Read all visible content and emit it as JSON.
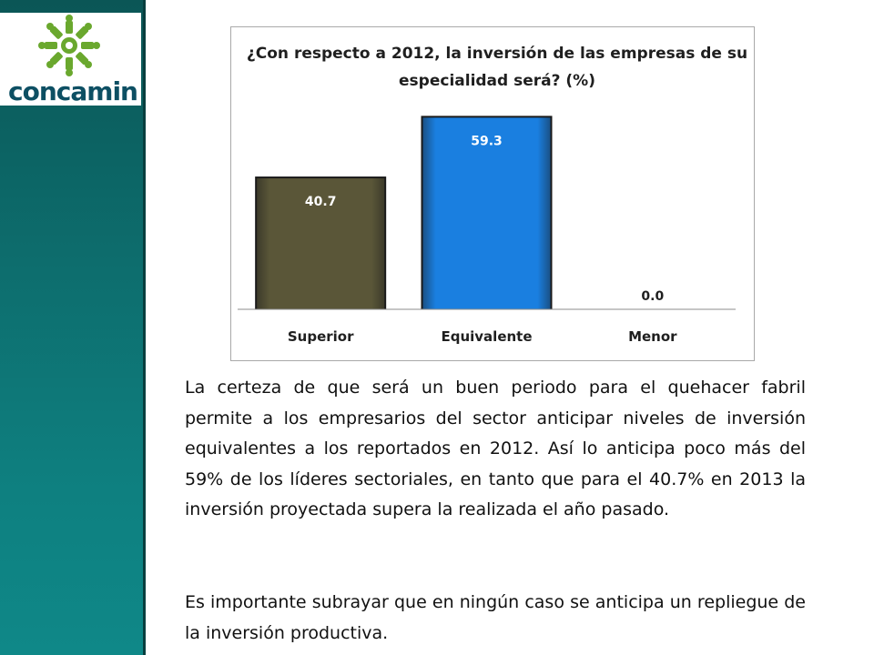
{
  "logo": {
    "text": "concamin",
    "icon": "concamin-gear-icon",
    "colors": {
      "gear": "#6aa82e",
      "text": "#0d4f63"
    }
  },
  "chart_data": {
    "type": "bar",
    "title": "¿Con respecto a 2012, la inversión de las empresas de su especialidad será? (%)",
    "categories": [
      "Superior",
      "Equivalente",
      "Menor"
    ],
    "values": [
      40.7,
      59.3,
      0.0
    ],
    "value_labels": [
      "40.7",
      "59.3",
      "0.0"
    ],
    "colors": [
      "#5a5638",
      "#1a7fe0",
      "#808080"
    ],
    "ylim": [
      0,
      70
    ],
    "grid": false,
    "legend": "none"
  },
  "paragraphs": {
    "p1": "La certeza de que será un buen periodo para el quehacer fabril permite a los empresarios del sector anticipar niveles de inversión equivalentes a los reportados en 2012. Así lo anticipa poco más del 59% de los líderes sectoriales, en tanto que para el 40.7% en 2013 la inversión proyectada supera la realizada el año pasado.",
    "p2": "Es importante subrayar que en ningún caso se anticipa un repliegue de la inversión productiva."
  }
}
